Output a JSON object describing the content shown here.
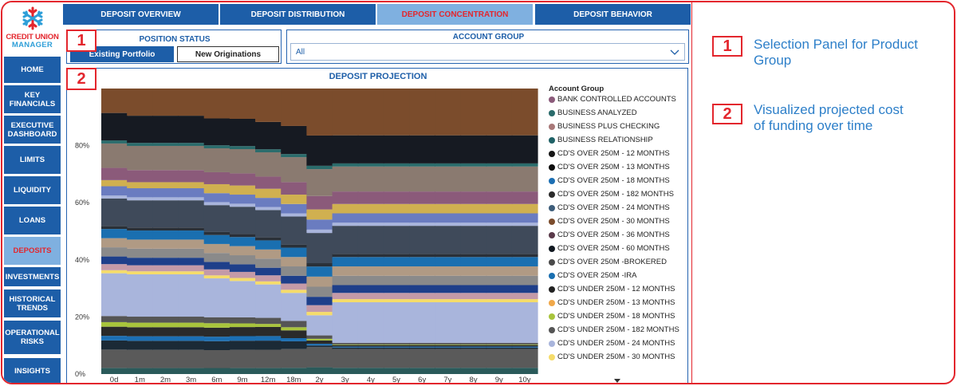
{
  "logo": {
    "line1": "CREDIT UNION",
    "line2": "MANAGER"
  },
  "sidebar": {
    "items": [
      {
        "label": "HOME",
        "active": false
      },
      {
        "label": "KEY\nFINANCIALS",
        "active": false
      },
      {
        "label": "EXECUTIVE\nDASHBOARD",
        "active": false
      },
      {
        "label": "LIMITS",
        "active": false
      },
      {
        "label": "LIQUIDITY",
        "active": false
      },
      {
        "label": "LOANS",
        "active": false
      },
      {
        "label": "DEPOSITS",
        "active": true
      },
      {
        "label": "INVESTMENTS",
        "active": false
      },
      {
        "label": "HISTORICAL\nTRENDS",
        "active": false
      },
      {
        "label": "OPERATIONAL\nRISKS",
        "active": false
      },
      {
        "label": "INSIGHTS",
        "active": false
      }
    ]
  },
  "tabs": [
    {
      "label": "DEPOSIT OVERVIEW",
      "active": false
    },
    {
      "label": "DEPOSIT DISTRIBUTION",
      "active": false
    },
    {
      "label": "DEPOSIT CONCENTRATION",
      "active": true
    },
    {
      "label": "DEPOSIT BEHAVIOR",
      "active": false
    }
  ],
  "position_status": {
    "badge": "1",
    "title": "POSITION STATUS",
    "options": [
      "Existing Portfolio",
      "New Originations"
    ],
    "selected": "Existing Portfolio"
  },
  "account_group_filter": {
    "title": "ACCOUNT GROUP",
    "value": "All"
  },
  "projection": {
    "badge": "2",
    "title": "DEPOSIT PROJECTION"
  },
  "annotations": [
    {
      "num": "1",
      "text": "Selection Panel for Product Group"
    },
    {
      "num": "2",
      "text": "Visualized projected cost of funding over time"
    }
  ],
  "colors": {
    "accent_red": "#e3262d",
    "nav_blue": "#1d5ea8",
    "active_tab": "#7fb0e0"
  },
  "chart_data": {
    "type": "area",
    "title": "DEPOSIT PROJECTION",
    "x": [
      "0d",
      "1m",
      "2m",
      "3m",
      "6m",
      "9m",
      "12m",
      "18m",
      "2y",
      "3y",
      "4y",
      "5y",
      "6y",
      "7y",
      "8y",
      "9y",
      "10y"
    ],
    "y_ticks": [
      "0%",
      "20%",
      "40%",
      "60%",
      "80%"
    ],
    "ylim": [
      0,
      100
    ],
    "legend_title": "Account Group",
    "legend_position": "right",
    "series": [
      {
        "name": "BANK CONTROLLED ACCOUNTS",
        "color": "#8b5a7a"
      },
      {
        "name": "BUSINESS ANALYZED",
        "color": "#2a6b6b"
      },
      {
        "name": "BUSINESS PLUS CHECKING",
        "color": "#a87878"
      },
      {
        "name": "BUSINESS RELATIONSHIP",
        "color": "#1f6166"
      },
      {
        "name": "CD'S OVER 250M  - 12 MONTHS",
        "color": "#161616"
      },
      {
        "name": "CD'S OVER 250M  - 13 MONTHS",
        "color": "#0d0d0d"
      },
      {
        "name": "CD'S OVER 250M  - 18 MONTHS",
        "color": "#1c6fb3"
      },
      {
        "name": "CD'S OVER 250M  - 182 MONTHS",
        "color": "#2a2a2a"
      },
      {
        "name": "CD'S OVER 250M  - 24 MONTHS",
        "color": "#3d5d7a"
      },
      {
        "name": "CD'S OVER 250M  - 30 MONTHS",
        "color": "#7b4c2c"
      },
      {
        "name": "CD'S OVER 250M  - 36 MONTHS",
        "color": "#5a3a4a"
      },
      {
        "name": "CD'S OVER 250M  - 60 MONTHS",
        "color": "#101820"
      },
      {
        "name": "CD'S OVER 250M -BROKERED",
        "color": "#4a4a4a"
      },
      {
        "name": "CD'S OVER 250M -IRA",
        "color": "#1a6fb0"
      },
      {
        "name": "CD'S UNDER 250M  - 12 MONTHS",
        "color": "#222222"
      },
      {
        "name": "CD'S UNDER 250M  - 13 MONTHS",
        "color": "#f0a84a"
      },
      {
        "name": "CD'S UNDER 250M  - 18 MONTHS",
        "color": "#a8c43c"
      },
      {
        "name": "CD'S UNDER 250M  - 182 MONTHS",
        "color": "#555555"
      },
      {
        "name": "CD'S UNDER 250M  - 24 MONTHS",
        "color": "#a9b5dc"
      },
      {
        "name": "CD'S UNDER 250M  - 30 MONTHS",
        "color": "#f5dc6a"
      }
    ]
  }
}
